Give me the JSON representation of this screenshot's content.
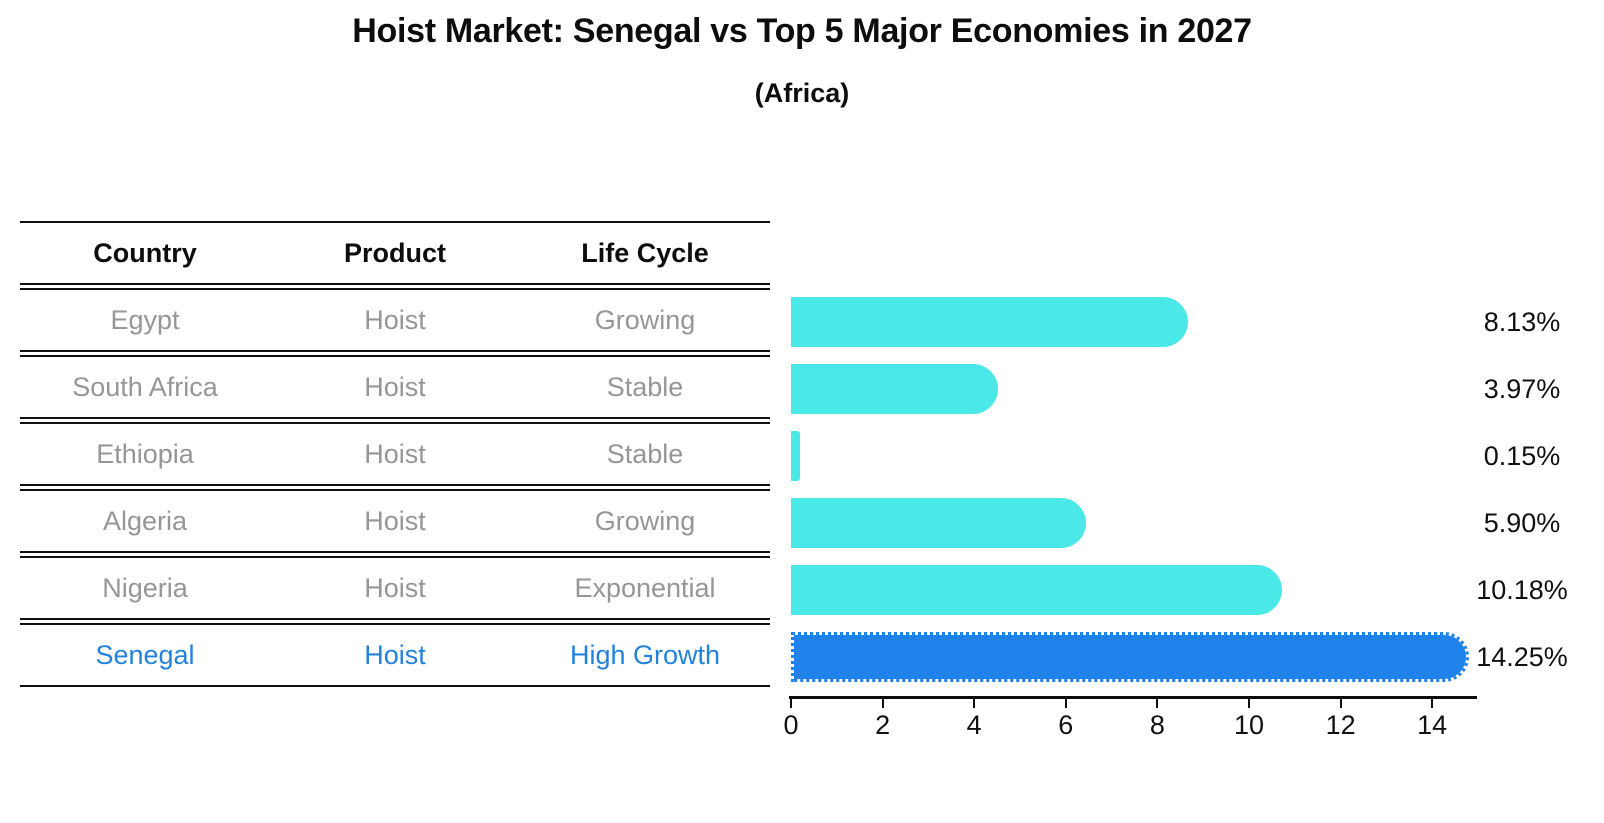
{
  "header": {
    "title": "Hoist Market: Senegal vs Top 5 Major Economies in 2027",
    "subtitle": "(Africa)"
  },
  "table": {
    "columns": [
      "Country",
      "Product",
      "Life Cycle"
    ],
    "rows": [
      {
        "country": "Egypt",
        "product": "Hoist",
        "life_cycle": "Growing",
        "highlight": false
      },
      {
        "country": "South Africa",
        "product": "Hoist",
        "life_cycle": "Stable",
        "highlight": false
      },
      {
        "country": "Ethiopia",
        "product": "Hoist",
        "life_cycle": "Stable",
        "highlight": false
      },
      {
        "country": "Algeria",
        "product": "Hoist",
        "life_cycle": "Growing",
        "highlight": false
      },
      {
        "country": "Nigeria",
        "product": "Hoist",
        "life_cycle": "Exponential",
        "highlight": false
      },
      {
        "country": "Senegal",
        "product": "Hoist",
        "life_cycle": "High Growth",
        "highlight": true
      }
    ]
  },
  "chart_data": {
    "type": "bar",
    "orientation": "horizontal",
    "title": "Hoist Market: Senegal vs Top 5 Major Economies in 2027",
    "subtitle": "(Africa)",
    "categories": [
      "Egypt",
      "South Africa",
      "Ethiopia",
      "Algeria",
      "Nigeria",
      "Senegal"
    ],
    "values": [
      8.13,
      3.97,
      0.15,
      5.9,
      10.18,
      14.25
    ],
    "value_labels": [
      "8.13%",
      "3.97%",
      "0.15%",
      "5.90%",
      "10.18%",
      "14.25%"
    ],
    "xticks": [
      0,
      2,
      4,
      6,
      8,
      10,
      12,
      14
    ],
    "xlim": [
      0,
      15
    ],
    "grid": false,
    "legend": false,
    "highlight_index": 5,
    "bar_color": "#4AE8E6",
    "highlight_color": "#2083EC",
    "highlight_text_color": "#2382DB",
    "text_gray": "#969696"
  }
}
